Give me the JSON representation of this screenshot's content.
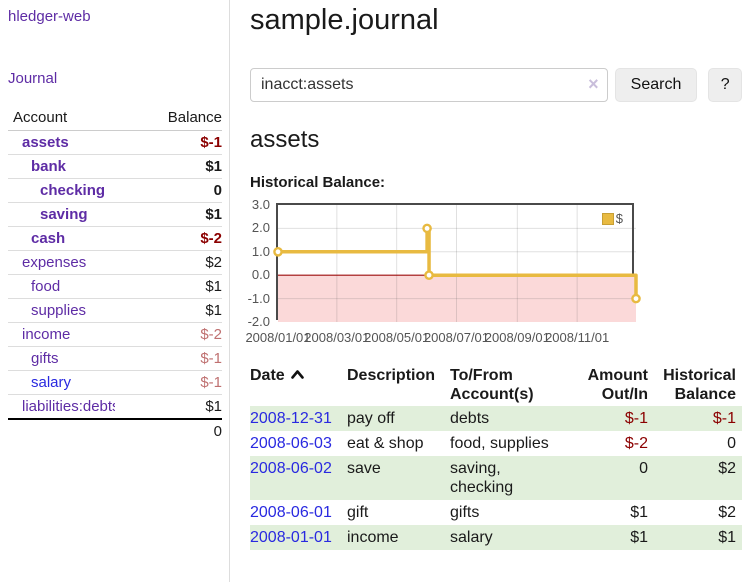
{
  "sidebar": {
    "brand": "hledger-web",
    "journal_link": "Journal",
    "accounts_table": {
      "header_account": "Account",
      "header_balance": "Balance",
      "rows": [
        {
          "name": "assets",
          "depth": 0,
          "bold": true,
          "name_style": "purple",
          "balance": "$-1",
          "balance_style": "neg-strong"
        },
        {
          "name": "bank",
          "depth": 1,
          "bold": true,
          "name_style": "purple",
          "balance": "$1",
          "balance_style": "normal"
        },
        {
          "name": "checking",
          "depth": 2,
          "bold": true,
          "name_style": "purple",
          "balance": "0",
          "balance_style": "normal"
        },
        {
          "name": "saving",
          "depth": 2,
          "bold": true,
          "name_style": "purple",
          "balance": "$1",
          "balance_style": "normal"
        },
        {
          "name": "cash",
          "depth": 1,
          "bold": true,
          "name_style": "purple",
          "balance": "$-2",
          "balance_style": "neg-strong"
        },
        {
          "name": "expenses",
          "depth": 0,
          "bold": false,
          "name_style": "purple",
          "balance": "$2",
          "balance_style": "normal"
        },
        {
          "name": "food",
          "depth": 1,
          "bold": false,
          "name_style": "purple",
          "balance": "$1",
          "balance_style": "normal"
        },
        {
          "name": "supplies",
          "depth": 1,
          "bold": false,
          "name_style": "purple",
          "balance": "$1",
          "balance_style": "normal"
        },
        {
          "name": "income",
          "depth": 0,
          "bold": false,
          "name_style": "purple",
          "balance": "$-2",
          "balance_style": "neg-soft"
        },
        {
          "name": "gifts",
          "depth": 1,
          "bold": false,
          "name_style": "purple",
          "balance": "$-1",
          "balance_style": "neg-soft"
        },
        {
          "name": "salary",
          "depth": 1,
          "bold": false,
          "name_style": "blue",
          "balance": "$-1",
          "balance_style": "neg-soft"
        },
        {
          "name": "liabilities:debts",
          "depth": 0,
          "bold": false,
          "name_style": "purple",
          "balance": "$1",
          "balance_style": "normal"
        }
      ],
      "total": "0"
    }
  },
  "header": {
    "title": "sample.journal"
  },
  "search": {
    "value": "inacct:assets",
    "clear_icon": "×",
    "button_label": "Search",
    "help_label": "?"
  },
  "account_page": {
    "title": "assets",
    "chart_label": "Historical Balance:"
  },
  "chart_data": {
    "type": "line",
    "title": "Historical Balance",
    "legend": [
      {
        "label": "$",
        "color": "#e8ba41"
      }
    ],
    "legend_position": "top-right",
    "grid": true,
    "ylim": [
      -2,
      3
    ],
    "y_ticks": [
      "3.0",
      "2.0",
      "1.0",
      "0.0",
      "-1.0",
      "-2.0"
    ],
    "y_tick_values": [
      3,
      2,
      1,
      0,
      -1,
      -2
    ],
    "xlim_days": [
      0,
      365
    ],
    "x_ticks": [
      {
        "day": 0,
        "label": "2008/01/01"
      },
      {
        "day": 60,
        "label": "2008/03/01"
      },
      {
        "day": 121,
        "label": "2008/05/01"
      },
      {
        "day": 182,
        "label": "2008/07/01"
      },
      {
        "day": 244,
        "label": "2008/09/01"
      },
      {
        "day": 305,
        "label": "2008/11/01"
      }
    ],
    "series": [
      {
        "name": "$",
        "color": "#e8ba41",
        "points": [
          {
            "date": "2008-01-01",
            "day": 0,
            "value": 1
          },
          {
            "date": "2008-06-01",
            "day": 152,
            "value": 2
          },
          {
            "date": "2008-06-02",
            "day": 153,
            "value": 2
          },
          {
            "date": "2008-06-03",
            "day": 154,
            "value": 0
          },
          {
            "date": "2008-12-31",
            "day": 365,
            "value": -1
          }
        ],
        "step_line": [
          [
            0,
            1
          ],
          [
            152,
            1
          ],
          [
            152,
            2
          ],
          [
            154,
            2
          ],
          [
            154,
            0
          ],
          [
            365,
            0
          ],
          [
            365,
            -1
          ]
        ],
        "markers": [
          [
            0,
            1
          ],
          [
            152,
            2
          ],
          [
            154,
            0
          ],
          [
            365,
            -1
          ]
        ]
      }
    ],
    "zero_line_color": "#9c0d0d",
    "negative_fill": "#fbd9d9"
  },
  "transactions": {
    "headers": {
      "date": "Date",
      "description": "Description",
      "accounts": "To/From Account(s)",
      "amount": "Amount Out/In",
      "balance": "Historical Balance"
    },
    "sort_icon": "chevron-up",
    "rows": [
      {
        "date": "2008-12-31",
        "description": "pay off",
        "accounts": "debts",
        "amount": "$-1",
        "amount_neg": true,
        "balance": "$-1",
        "balance_neg": true,
        "shaded": true
      },
      {
        "date": "2008-06-03",
        "description": "eat & shop",
        "accounts": "food, supplies",
        "amount": "$-2",
        "amount_neg": true,
        "balance": "0",
        "balance_neg": false,
        "shaded": false
      },
      {
        "date": "2008-06-02",
        "description": "save",
        "accounts": "saving, checking",
        "amount": "0",
        "amount_neg": false,
        "balance": "$2",
        "balance_neg": false,
        "shaded": true
      },
      {
        "date": "2008-06-01",
        "description": "gift",
        "accounts": "gifts",
        "amount": "$1",
        "amount_neg": false,
        "balance": "$2",
        "balance_neg": false,
        "shaded": false
      },
      {
        "date": "2008-01-01",
        "description": "income",
        "accounts": "salary",
        "amount": "$1",
        "amount_neg": false,
        "balance": "$1",
        "balance_neg": false,
        "shaded": true
      }
    ]
  }
}
